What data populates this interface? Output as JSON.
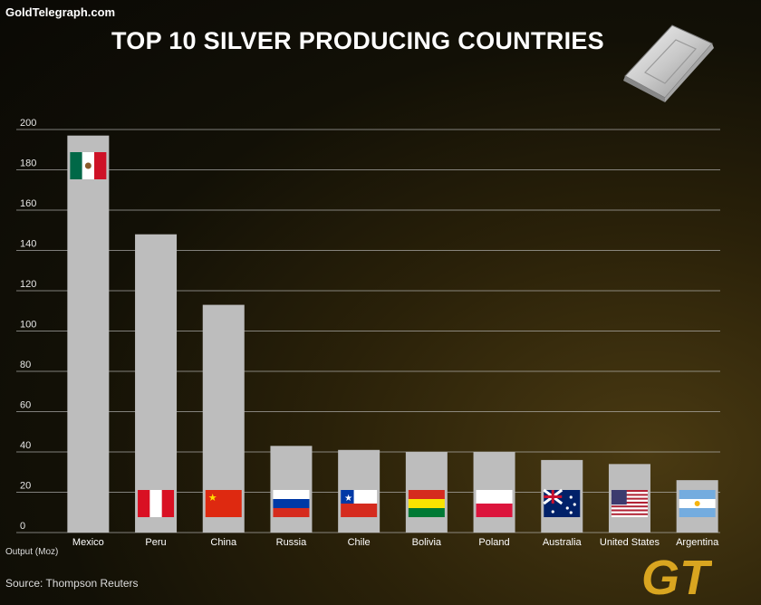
{
  "header": {
    "site": "GoldTelegraph.com",
    "title": "TOP 10 SILVER PRODUCING COUNTRIES"
  },
  "footer": {
    "source": "Source: Thompson Reuters",
    "logo_text": "GT"
  },
  "colors": {
    "bar": "#bdbdbd",
    "grid": "#bfbfbf",
    "logo_gold": "#d9a520"
  },
  "chart_data": {
    "type": "bar",
    "title": "TOP 10 SILVER PRODUCING COUNTRIES",
    "ylabel": "Output (Moz)",
    "ylim": [
      0,
      200
    ],
    "yticks": [
      0,
      20,
      40,
      60,
      80,
      100,
      120,
      140,
      160,
      180,
      200
    ],
    "grid": true,
    "categories": [
      "Mexico",
      "Peru",
      "China",
      "Russia",
      "Chile",
      "Bolivia",
      "Poland",
      "Australia",
      "United States",
      "Argentina"
    ],
    "values": [
      197,
      148,
      113,
      43,
      41,
      40,
      40,
      36,
      34,
      26
    ],
    "flag_icons": [
      "mexico-flag-icon",
      "peru-flag-icon",
      "china-flag-icon",
      "russia-flag-icon",
      "chile-flag-icon",
      "bolivia-flag-icon",
      "poland-flag-icon",
      "australia-flag-icon",
      "united-states-flag-icon",
      "argentina-flag-icon"
    ]
  }
}
